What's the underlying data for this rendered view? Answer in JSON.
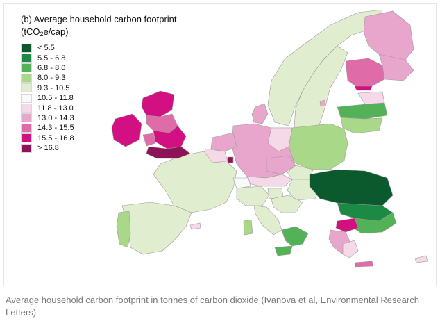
{
  "figure": {
    "title": "(b) Average household carbon footprint",
    "unit_prefix": "(tCO",
    "unit_sub": "2",
    "unit_suffix": "e/cap)"
  },
  "legend": [
    {
      "label": "< 5.5",
      "color": "#0b5a2e"
    },
    {
      "label": "5.5 - 6.8",
      "color": "#1b8a45"
    },
    {
      "label": "6.8 - 8.0",
      "color": "#53b257"
    },
    {
      "label": "8.0 - 9.3",
      "color": "#a9d889"
    },
    {
      "label": "9.3 - 10.5",
      "color": "#e1edcf"
    },
    {
      "label": "10.5 - 11.8",
      "color": "#f9f9f9"
    },
    {
      "label": "11.8 - 13.0",
      "color": "#f5d9e8"
    },
    {
      "label": "13.0 - 14.3",
      "color": "#e9a6cd"
    },
    {
      "label": "14.3 - 15.5",
      "color": "#df6ca8"
    },
    {
      "label": "15.5 - 16.8",
      "color": "#d21081"
    },
    {
      "label": "> 16.8",
      "color": "#8e1358"
    }
  ],
  "caption": "Average household carbon footprint in tonnes of carbon dioxide (Ivanova et al, Environmental Research Letters)",
  "colors": {
    "sea": "#ffffff",
    "border": "#9a9a9a"
  }
}
